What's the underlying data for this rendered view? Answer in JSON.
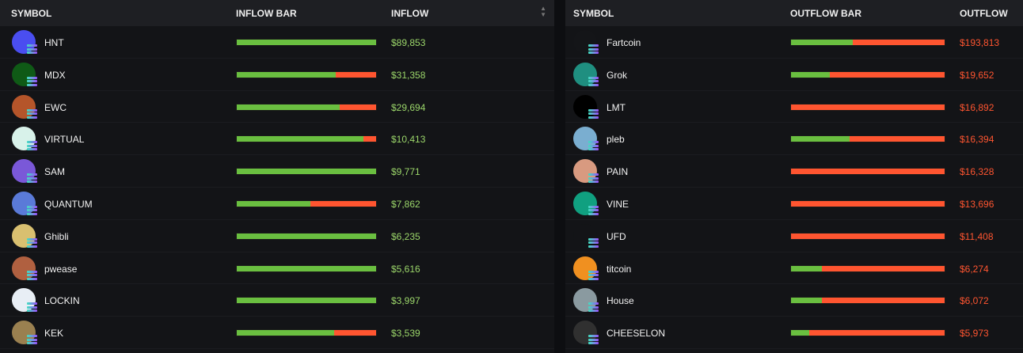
{
  "inflow_table": {
    "headers": {
      "symbol": "SYMBOL",
      "bar": "INFLOW BAR",
      "value": "INFLOW"
    },
    "colors": {
      "inflow": "#6abf40",
      "outflow": "#ff5530",
      "inflow_text": "#9bd66a"
    },
    "rows": [
      {
        "symbol": "HNT",
        "value": "$89,853",
        "inflow_fraction": 1.0,
        "avatar": "#4a4ef0"
      },
      {
        "symbol": "MDX",
        "value": "$31,358",
        "inflow_fraction": 0.71,
        "avatar": "#0f5a16"
      },
      {
        "symbol": "EWC",
        "value": "$29,694",
        "inflow_fraction": 0.74,
        "avatar": "#b5552a"
      },
      {
        "symbol": "VIRTUAL",
        "value": "$10,413",
        "inflow_fraction": 0.91,
        "avatar": "#d8f2ea"
      },
      {
        "symbol": "SAM",
        "value": "$9,771",
        "inflow_fraction": 1.0,
        "avatar": "#7a58d8"
      },
      {
        "symbol": "QUANTUM",
        "value": "$7,862",
        "inflow_fraction": 0.53,
        "avatar": "#5a7ad8"
      },
      {
        "symbol": "Ghibli",
        "value": "$6,235",
        "inflow_fraction": 1.0,
        "avatar": "#d9c070"
      },
      {
        "symbol": "pwease",
        "value": "$5,616",
        "inflow_fraction": 1.0,
        "avatar": "#b06040"
      },
      {
        "symbol": "LOCKIN",
        "value": "$3,997",
        "inflow_fraction": 1.0,
        "avatar": "#e8eef5"
      },
      {
        "symbol": "KEK",
        "value": "$3,539",
        "inflow_fraction": 0.7,
        "avatar": "#9a8050"
      }
    ]
  },
  "outflow_table": {
    "headers": {
      "symbol": "SYMBOL",
      "bar": "OUTFLOW BAR",
      "value": "OUTFLOW"
    },
    "colors": {
      "outflow_text": "#ff5530"
    },
    "rows": [
      {
        "symbol": "Fartcoin",
        "value": "$193,813",
        "inflow_fraction": 0.4,
        "avatar": "#141518"
      },
      {
        "symbol": "Grok",
        "value": "$19,652",
        "inflow_fraction": 0.25,
        "avatar": "#1f8f80"
      },
      {
        "symbol": "LMT",
        "value": "$16,892",
        "inflow_fraction": 0.0,
        "avatar": "#000000"
      },
      {
        "symbol": "pleb",
        "value": "$16,394",
        "inflow_fraction": 0.38,
        "avatar": "#7aaed0"
      },
      {
        "symbol": "PAIN",
        "value": "$16,328",
        "inflow_fraction": 0.0,
        "avatar": "#d89a80"
      },
      {
        "symbol": "VINE",
        "value": "$13,696",
        "inflow_fraction": 0.0,
        "avatar": "#10a080"
      },
      {
        "symbol": "UFD",
        "value": "$11,408",
        "inflow_fraction": 0.0,
        "avatar": "#131417"
      },
      {
        "symbol": "titcoin",
        "value": "$6,274",
        "inflow_fraction": 0.2,
        "avatar": "#f09020"
      },
      {
        "symbol": "House",
        "value": "$6,072",
        "inflow_fraction": 0.2,
        "avatar": "#8a9aa0"
      },
      {
        "symbol": "CHEESELON",
        "value": "$5,973",
        "inflow_fraction": 0.12,
        "avatar": "#303030"
      }
    ]
  }
}
